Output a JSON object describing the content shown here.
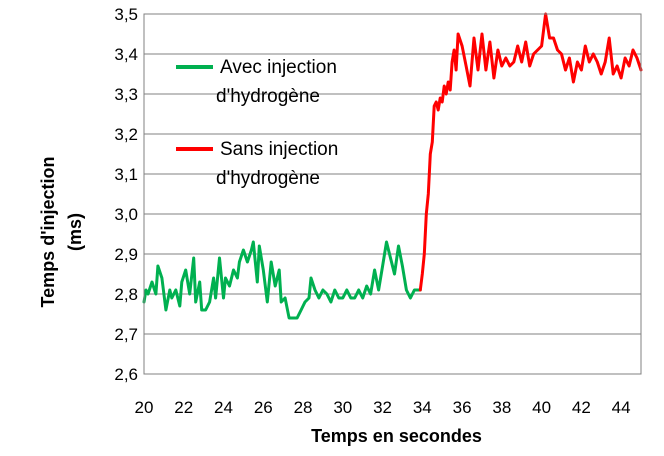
{
  "chart_data": {
    "type": "line",
    "title": "",
    "xlabel": "Temps en secondes",
    "ylabel": [
      "Temps d'injection",
      "(ms)"
    ],
    "xlim": [
      20,
      45
    ],
    "ylim": [
      2.6,
      3.5
    ],
    "x_ticks": [
      "20",
      "22",
      "24",
      "26",
      "28",
      "30",
      "32",
      "34",
      "36",
      "38",
      "40",
      "42",
      "44"
    ],
    "x_tick_values": [
      20,
      22,
      24,
      26,
      28,
      30,
      32,
      34,
      36,
      38,
      40,
      42,
      44
    ],
    "y_ticks": [
      "2,6",
      "2,7",
      "2,8",
      "2,9",
      "3,0",
      "3,1",
      "3,2",
      "3,3",
      "3,4",
      "3,5"
    ],
    "y_tick_values": [
      2.6,
      2.7,
      2.8,
      2.9,
      3.0,
      3.1,
      3.2,
      3.3,
      3.4,
      3.5
    ],
    "grid": "horizontal",
    "legend": "top-left inside plot",
    "series": [
      {
        "name": [
          "Avec injection",
          "d'hydrogène"
        ],
        "color": "#00b050",
        "x": [
          20,
          20.1,
          20.2,
          20.4,
          20.6,
          20.7,
          20.9,
          21.0,
          21.1,
          21.3,
          21.4,
          21.6,
          21.8,
          21.9,
          22.1,
          22.3,
          22.5,
          22.6,
          22.8,
          22.9,
          23.1,
          23.3,
          23.5,
          23.6,
          23.8,
          24.0,
          24.1,
          24.3,
          24.5,
          24.7,
          24.8,
          25.0,
          25.2,
          25.4,
          25.5,
          25.7,
          25.8,
          26.0,
          26.2,
          26.4,
          26.6,
          26.8,
          26.9,
          27.1,
          27.3,
          27.5,
          27.7,
          27.9,
          28.1,
          28.3,
          28.4,
          28.6,
          28.8,
          29.0,
          29.2,
          29.4,
          29.6,
          29.8,
          30.0,
          30.2,
          30.4,
          30.6,
          30.8,
          31.0,
          31.2,
          31.4,
          31.6,
          31.8,
          32.0,
          32.2,
          32.4,
          32.6,
          32.8,
          33.0,
          33.2,
          33.4,
          33.6,
          33.8,
          33.9
        ],
        "values": [
          2.78,
          2.81,
          2.8,
          2.83,
          2.8,
          2.87,
          2.84,
          2.8,
          2.76,
          2.81,
          2.79,
          2.81,
          2.77,
          2.83,
          2.86,
          2.8,
          2.89,
          2.78,
          2.83,
          2.76,
          2.76,
          2.78,
          2.84,
          2.79,
          2.89,
          2.79,
          2.84,
          2.82,
          2.86,
          2.84,
          2.88,
          2.91,
          2.88,
          2.91,
          2.93,
          2.83,
          2.92,
          2.86,
          2.78,
          2.88,
          2.82,
          2.86,
          2.78,
          2.79,
          2.74,
          2.74,
          2.74,
          2.76,
          2.78,
          2.79,
          2.84,
          2.81,
          2.79,
          2.81,
          2.8,
          2.78,
          2.81,
          2.79,
          2.79,
          2.81,
          2.79,
          2.79,
          2.81,
          2.79,
          2.82,
          2.8,
          2.86,
          2.81,
          2.87,
          2.93,
          2.89,
          2.85,
          2.92,
          2.87,
          2.81,
          2.79,
          2.81,
          2.81,
          2.81
        ]
      },
      {
        "name": [
          "Sans injection",
          "d'hydrogène"
        ],
        "color": "#ff0000",
        "x": [
          33.9,
          34.0,
          34.1,
          34.2,
          34.3,
          34.4,
          34.5,
          34.6,
          34.7,
          34.8,
          34.9,
          35.0,
          35.1,
          35.2,
          35.3,
          35.4,
          35.5,
          35.6,
          35.7,
          35.8,
          36.0,
          36.2,
          36.4,
          36.6,
          36.8,
          37.0,
          37.2,
          37.4,
          37.6,
          37.8,
          38.0,
          38.2,
          38.4,
          38.6,
          38.8,
          39.0,
          39.2,
          39.4,
          39.6,
          39.8,
          40.0,
          40.2,
          40.4,
          40.6,
          40.8,
          41.0,
          41.2,
          41.4,
          41.6,
          41.8,
          42.0,
          42.2,
          42.4,
          42.6,
          42.8,
          43.0,
          43.2,
          43.4,
          43.6,
          43.8,
          44.0,
          44.2,
          44.4,
          44.6,
          44.8,
          45.0
        ],
        "values": [
          2.81,
          2.85,
          2.9,
          3.0,
          3.05,
          3.15,
          3.18,
          3.27,
          3.28,
          3.26,
          3.29,
          3.28,
          3.32,
          3.3,
          3.33,
          3.31,
          3.38,
          3.41,
          3.36,
          3.45,
          3.42,
          3.37,
          3.32,
          3.44,
          3.36,
          3.45,
          3.36,
          3.43,
          3.34,
          3.41,
          3.37,
          3.39,
          3.37,
          3.38,
          3.42,
          3.38,
          3.43,
          3.37,
          3.4,
          3.41,
          3.42,
          3.5,
          3.44,
          3.44,
          3.41,
          3.4,
          3.36,
          3.39,
          3.33,
          3.38,
          3.36,
          3.42,
          3.38,
          3.4,
          3.38,
          3.35,
          3.38,
          3.44,
          3.35,
          3.37,
          3.34,
          3.39,
          3.37,
          3.41,
          3.39,
          3.36
        ]
      }
    ]
  }
}
